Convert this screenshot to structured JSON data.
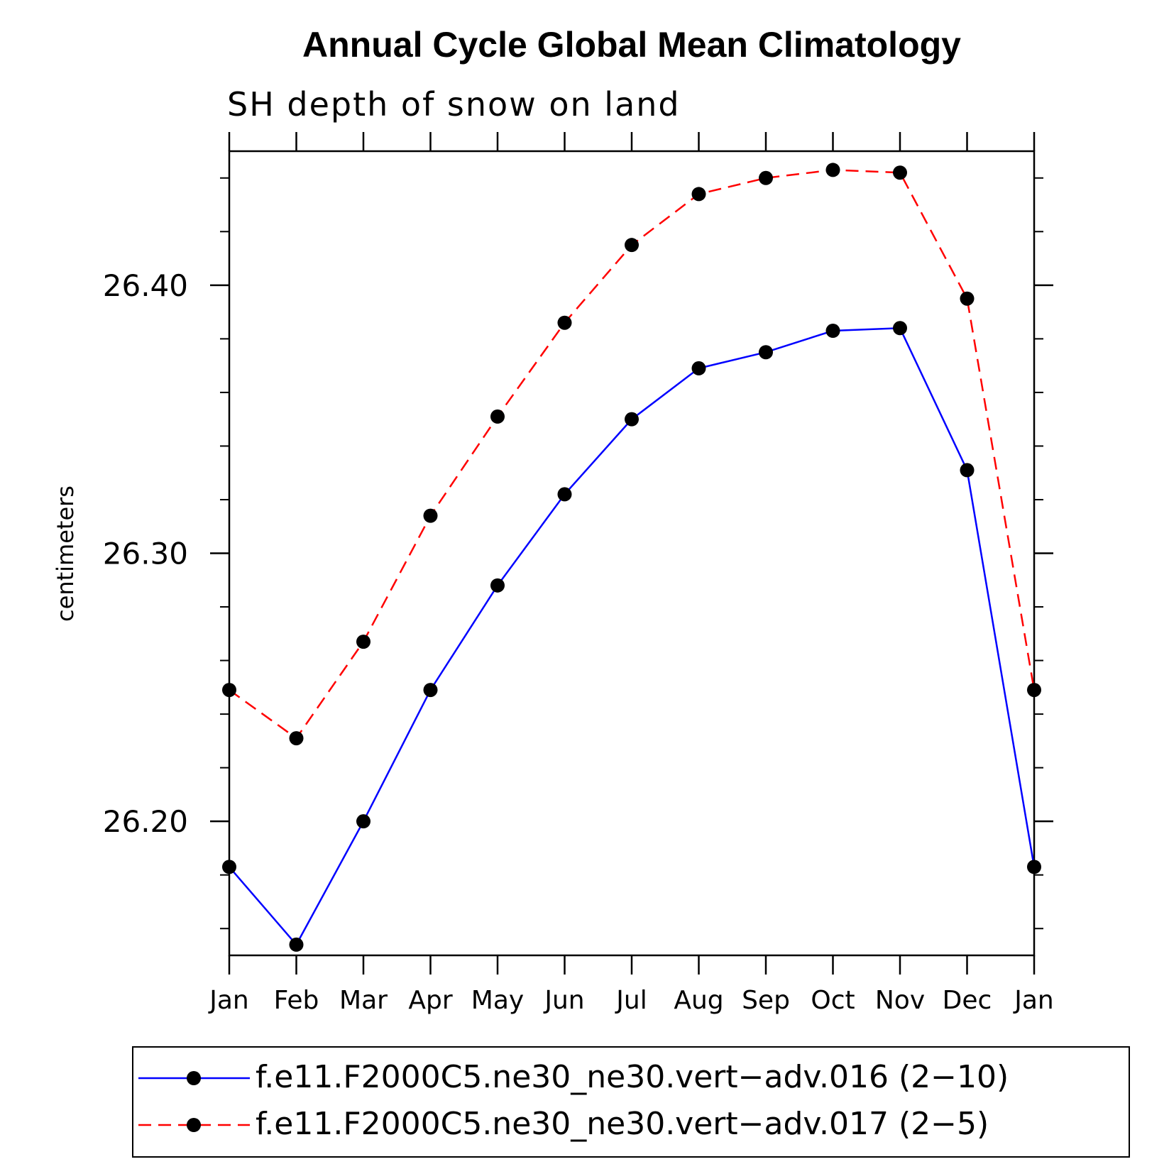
{
  "chart_data": {
    "type": "line",
    "title": "Annual Cycle Global Mean Climatology",
    "subtitle": "SH depth of snow on land",
    "xlabel": "",
    "ylabel": "centimeters",
    "categories": [
      "Jan",
      "Feb",
      "Mar",
      "Apr",
      "May",
      "Jun",
      "Jul",
      "Aug",
      "Sep",
      "Oct",
      "Nov",
      "Dec",
      "Jan"
    ],
    "ylim": [
      26.15,
      26.45
    ],
    "y_major_ticks": [
      26.2,
      26.3,
      26.4
    ],
    "y_tick_labels": [
      "26.20",
      "26.30",
      "26.40"
    ],
    "y_minor_step": 0.02,
    "grid": false,
    "legend_position": "bottom",
    "series": [
      {
        "name": "f.e11.F2000C5.ne30_ne30.vert−adv.016 (2−10)",
        "color": "#0000ff",
        "line_style": "solid",
        "marker": "circle",
        "values": [
          26.183,
          26.154,
          26.2,
          26.249,
          26.288,
          26.322,
          26.35,
          26.369,
          26.375,
          26.383,
          26.384,
          26.331,
          26.183
        ]
      },
      {
        "name": "f.e11.F2000C5.ne30_ne30.vert−adv.017 (2−5)",
        "color": "#ff0000",
        "line_style": "dashed",
        "marker": "circle",
        "values": [
          26.249,
          26.231,
          26.267,
          26.314,
          26.351,
          26.386,
          26.415,
          26.434,
          26.44,
          26.443,
          26.442,
          26.395,
          26.249
        ]
      }
    ]
  }
}
